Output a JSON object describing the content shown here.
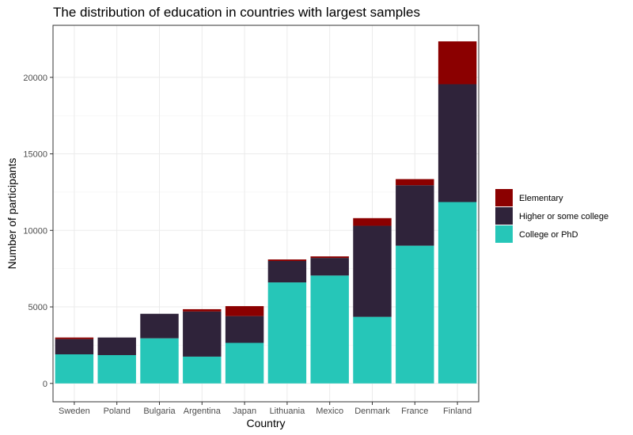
{
  "chart_data": {
    "type": "bar",
    "stacked": true,
    "title": "The distribution of education in countries with largest samples",
    "xlabel": "Country",
    "ylabel": "Number of participants",
    "ylim": [
      -1200,
      23400
    ],
    "yticks": [
      0,
      5000,
      10000,
      15000,
      20000
    ],
    "grid": true,
    "legend_position": "right",
    "categories": [
      "Sweden",
      "Poland",
      "Bulgaria",
      "Argentina",
      "Japan",
      "Lithuania",
      "Mexico",
      "Denmark",
      "France",
      "Finland"
    ],
    "series": [
      {
        "name": "College or PhD",
        "color": "#26c6b8",
        "values": [
          1900,
          1850,
          2950,
          1750,
          2650,
          6600,
          7050,
          4350,
          9000,
          11850
        ]
      },
      {
        "name": "Higher or some college",
        "color": "#2f233a",
        "values": [
          1000,
          1150,
          1600,
          2950,
          1750,
          1400,
          1150,
          5950,
          3950,
          7700
        ]
      },
      {
        "name": "Elementary",
        "color": "#8b0000",
        "values": [
          100,
          0,
          0,
          150,
          650,
          100,
          100,
          500,
          400,
          2800
        ]
      }
    ],
    "legend_order": [
      "Elementary",
      "Higher or some college",
      "College or PhD"
    ]
  }
}
